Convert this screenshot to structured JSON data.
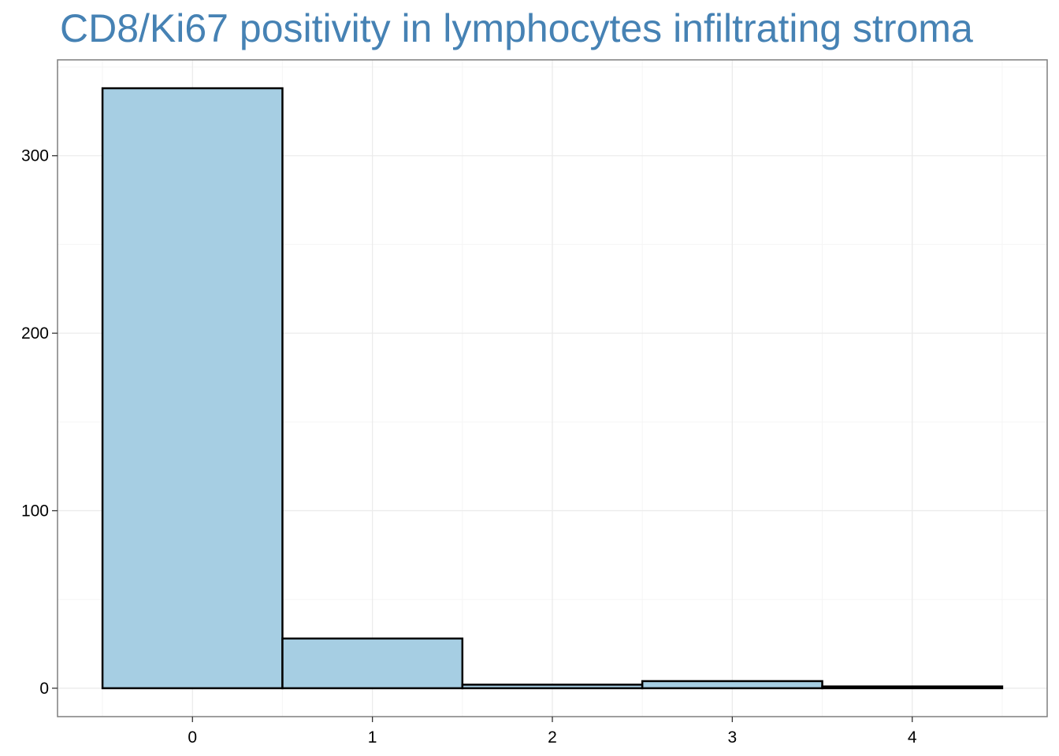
{
  "chart_data": {
    "type": "bar",
    "title": "CD8/Ki67 positivity in lymphocytes infiltrating stroma",
    "xlabel": "",
    "ylabel": "",
    "categories": [
      "0",
      "1",
      "2",
      "3",
      "4"
    ],
    "x": [
      0,
      1,
      2,
      3,
      4
    ],
    "values": [
      338,
      28,
      2,
      4,
      1
    ],
    "xlim": [
      -0.75,
      4.75
    ],
    "ylim": [
      -16,
      354
    ],
    "x_ticks": [
      0,
      1,
      2,
      3,
      4
    ],
    "y_ticks": [
      0,
      100,
      200,
      300
    ],
    "grid": true,
    "legend": "none",
    "colors": {
      "title": "#4682b4",
      "bar_fill": "#a6cee3",
      "bar_stroke": "#000000",
      "panel_border": "#7f7f7f",
      "grid_major": "#ebebeb",
      "grid_minor": "#f5f5f5"
    }
  }
}
